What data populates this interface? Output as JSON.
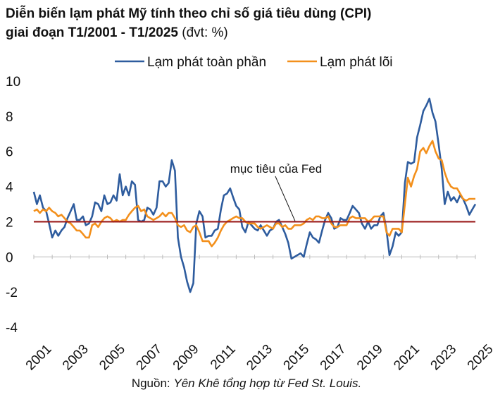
{
  "title_line1": "Diễn biến lạm phát Mỹ tính theo chỉ số giá tiêu dùng (CPI)",
  "title_line2": "giai đoạn T1/2001 - T1/2025",
  "title_unit": "(đvt: %)",
  "source_prefix": "Nguồn:",
  "source_text": "Yên Khê tổng hợp từ Fed St. Louis.",
  "colors": {
    "headline": "#2e5c9e",
    "core": "#f3901c",
    "target": "#9b1b1b",
    "axis": "#bbbbbb"
  },
  "chart_data": {
    "type": "line",
    "title": "Diễn biến lạm phát Mỹ tính theo chỉ số giá tiêu dùng (CPI) giai đoạn T1/2001 - T1/2025 (đvt: %)",
    "xlabel": "",
    "ylabel": "",
    "xlim": [
      2001,
      2025
    ],
    "ylim": [
      -4,
      10
    ],
    "yticks": [
      "-4",
      "-2",
      "0",
      "2",
      "4",
      "6",
      "8",
      "10"
    ],
    "xticks": [
      "2001",
      "2003",
      "2005",
      "2007",
      "2009",
      "2011",
      "2013",
      "2015",
      "2017",
      "2019",
      "2021",
      "2023",
      "2025"
    ],
    "legend_position": "top-center",
    "annotation": {
      "text": "mục tiêu của Fed",
      "x": 2015.2,
      "y": 2
    },
    "target_line": 2,
    "series": [
      {
        "name": "Lạm phát toàn phần",
        "points": [
          [
            2001.0,
            3.7
          ],
          [
            2001.17,
            3.0
          ],
          [
            2001.33,
            3.5
          ],
          [
            2001.5,
            2.8
          ],
          [
            2001.67,
            2.6
          ],
          [
            2001.83,
            1.9
          ],
          [
            2002.0,
            1.1
          ],
          [
            2002.17,
            1.5
          ],
          [
            2002.33,
            1.2
          ],
          [
            2002.5,
            1.5
          ],
          [
            2002.67,
            1.7
          ],
          [
            2002.83,
            2.2
          ],
          [
            2003.0,
            2.6
          ],
          [
            2003.17,
            3.0
          ],
          [
            2003.33,
            2.1
          ],
          [
            2003.5,
            2.1
          ],
          [
            2003.67,
            2.3
          ],
          [
            2003.83,
            1.8
          ],
          [
            2004.0,
            1.9
          ],
          [
            2004.17,
            2.3
          ],
          [
            2004.33,
            3.1
          ],
          [
            2004.5,
            3.0
          ],
          [
            2004.67,
            2.6
          ],
          [
            2004.83,
            3.5
          ],
          [
            2005.0,
            3.0
          ],
          [
            2005.17,
            3.1
          ],
          [
            2005.33,
            3.5
          ],
          [
            2005.5,
            3.2
          ],
          [
            2005.67,
            4.7
          ],
          [
            2005.83,
            3.5
          ],
          [
            2006.0,
            4.0
          ],
          [
            2006.17,
            3.5
          ],
          [
            2006.33,
            4.3
          ],
          [
            2006.5,
            4.1
          ],
          [
            2006.67,
            2.1
          ],
          [
            2006.83,
            2.0
          ],
          [
            2007.0,
            2.1
          ],
          [
            2007.17,
            2.8
          ],
          [
            2007.33,
            2.7
          ],
          [
            2007.5,
            2.4
          ],
          [
            2007.67,
            2.8
          ],
          [
            2007.83,
            4.3
          ],
          [
            2008.0,
            4.3
          ],
          [
            2008.17,
            4.0
          ],
          [
            2008.33,
            4.2
          ],
          [
            2008.5,
            5.5
          ],
          [
            2008.67,
            4.9
          ],
          [
            2008.83,
            1.1
          ],
          [
            2009.0,
            0.0
          ],
          [
            2009.17,
            -0.6
          ],
          [
            2009.33,
            -1.4
          ],
          [
            2009.5,
            -2.0
          ],
          [
            2009.67,
            -1.5
          ],
          [
            2009.83,
            1.9
          ],
          [
            2010.0,
            2.6
          ],
          [
            2010.17,
            2.3
          ],
          [
            2010.33,
            1.1
          ],
          [
            2010.5,
            1.2
          ],
          [
            2010.67,
            1.2
          ],
          [
            2010.83,
            1.5
          ],
          [
            2011.0,
            1.6
          ],
          [
            2011.17,
            2.7
          ],
          [
            2011.33,
            3.5
          ],
          [
            2011.5,
            3.6
          ],
          [
            2011.67,
            3.9
          ],
          [
            2011.83,
            3.4
          ],
          [
            2012.0,
            2.9
          ],
          [
            2012.17,
            2.7
          ],
          [
            2012.33,
            1.7
          ],
          [
            2012.5,
            1.4
          ],
          [
            2012.67,
            2.0
          ],
          [
            2012.83,
            1.8
          ],
          [
            2013.0,
            1.6
          ],
          [
            2013.17,
            1.5
          ],
          [
            2013.33,
            1.8
          ],
          [
            2013.5,
            1.5
          ],
          [
            2013.67,
            1.2
          ],
          [
            2013.83,
            1.5
          ],
          [
            2014.0,
            1.6
          ],
          [
            2014.17,
            2.0
          ],
          [
            2014.33,
            2.1
          ],
          [
            2014.5,
            1.7
          ],
          [
            2014.67,
            1.3
          ],
          [
            2014.83,
            0.8
          ],
          [
            2015.0,
            -0.1
          ],
          [
            2015.17,
            0.0
          ],
          [
            2015.33,
            0.1
          ],
          [
            2015.5,
            0.2
          ],
          [
            2015.67,
            0.0
          ],
          [
            2015.83,
            0.7
          ],
          [
            2016.0,
            1.4
          ],
          [
            2016.17,
            1.1
          ],
          [
            2016.33,
            1.0
          ],
          [
            2016.5,
            0.8
          ],
          [
            2016.67,
            1.5
          ],
          [
            2016.83,
            2.1
          ],
          [
            2017.0,
            2.5
          ],
          [
            2017.17,
            2.2
          ],
          [
            2017.33,
            1.6
          ],
          [
            2017.5,
            1.7
          ],
          [
            2017.67,
            2.2
          ],
          [
            2017.83,
            2.1
          ],
          [
            2018.0,
            2.1
          ],
          [
            2018.17,
            2.5
          ],
          [
            2018.33,
            2.9
          ],
          [
            2018.5,
            2.7
          ],
          [
            2018.67,
            2.5
          ],
          [
            2018.83,
            1.9
          ],
          [
            2019.0,
            1.6
          ],
          [
            2019.17,
            2.0
          ],
          [
            2019.33,
            1.6
          ],
          [
            2019.5,
            1.8
          ],
          [
            2019.67,
            1.8
          ],
          [
            2019.83,
            2.3
          ],
          [
            2020.0,
            2.5
          ],
          [
            2020.17,
            1.5
          ],
          [
            2020.33,
            0.1
          ],
          [
            2020.5,
            0.6
          ],
          [
            2020.67,
            1.4
          ],
          [
            2020.83,
            1.2
          ],
          [
            2021.0,
            1.4
          ],
          [
            2021.17,
            4.2
          ],
          [
            2021.33,
            5.4
          ],
          [
            2021.5,
            5.3
          ],
          [
            2021.67,
            5.4
          ],
          [
            2021.83,
            6.8
          ],
          [
            2022.0,
            7.5
          ],
          [
            2022.17,
            8.3
          ],
          [
            2022.33,
            8.6
          ],
          [
            2022.5,
            9.0
          ],
          [
            2022.67,
            8.2
          ],
          [
            2022.83,
            7.7
          ],
          [
            2023.0,
            6.4
          ],
          [
            2023.17,
            5.0
          ],
          [
            2023.33,
            3.0
          ],
          [
            2023.5,
            3.7
          ],
          [
            2023.67,
            3.2
          ],
          [
            2023.83,
            3.4
          ],
          [
            2024.0,
            3.1
          ],
          [
            2024.17,
            3.5
          ],
          [
            2024.33,
            3.3
          ],
          [
            2024.5,
            2.9
          ],
          [
            2024.67,
            2.4
          ],
          [
            2024.83,
            2.7
          ],
          [
            2025.0,
            3.0
          ]
        ]
      },
      {
        "name": "Lạm phát lõi",
        "points": [
          [
            2001.0,
            2.6
          ],
          [
            2001.17,
            2.7
          ],
          [
            2001.33,
            2.5
          ],
          [
            2001.5,
            2.7
          ],
          [
            2001.67,
            2.6
          ],
          [
            2001.83,
            2.8
          ],
          [
            2002.0,
            2.6
          ],
          [
            2002.17,
            2.5
          ],
          [
            2002.33,
            2.3
          ],
          [
            2002.5,
            2.4
          ],
          [
            2002.67,
            2.2
          ],
          [
            2002.83,
            2.0
          ],
          [
            2003.0,
            1.9
          ],
          [
            2003.17,
            1.7
          ],
          [
            2003.33,
            1.5
          ],
          [
            2003.5,
            1.5
          ],
          [
            2003.67,
            1.3
          ],
          [
            2003.83,
            1.1
          ],
          [
            2004.0,
            1.1
          ],
          [
            2004.17,
            1.8
          ],
          [
            2004.33,
            1.9
          ],
          [
            2004.5,
            1.7
          ],
          [
            2004.67,
            2.0
          ],
          [
            2004.83,
            2.2
          ],
          [
            2005.0,
            2.3
          ],
          [
            2005.17,
            2.2
          ],
          [
            2005.33,
            2.0
          ],
          [
            2005.5,
            2.1
          ],
          [
            2005.67,
            2.0
          ],
          [
            2005.83,
            2.1
          ],
          [
            2006.0,
            2.1
          ],
          [
            2006.17,
            2.4
          ],
          [
            2006.33,
            2.6
          ],
          [
            2006.5,
            2.8
          ],
          [
            2006.67,
            2.9
          ],
          [
            2006.83,
            2.6
          ],
          [
            2007.0,
            2.7
          ],
          [
            2007.17,
            2.3
          ],
          [
            2007.33,
            2.2
          ],
          [
            2007.5,
            2.1
          ],
          [
            2007.67,
            2.2
          ],
          [
            2007.83,
            2.3
          ],
          [
            2008.0,
            2.5
          ],
          [
            2008.17,
            2.3
          ],
          [
            2008.33,
            2.5
          ],
          [
            2008.5,
            2.5
          ],
          [
            2008.67,
            2.2
          ],
          [
            2008.83,
            1.8
          ],
          [
            2009.0,
            1.7
          ],
          [
            2009.17,
            1.8
          ],
          [
            2009.33,
            1.5
          ],
          [
            2009.5,
            1.4
          ],
          [
            2009.67,
            1.7
          ],
          [
            2009.83,
            1.8
          ],
          [
            2010.0,
            1.4
          ],
          [
            2010.17,
            0.9
          ],
          [
            2010.33,
            0.9
          ],
          [
            2010.5,
            0.9
          ],
          [
            2010.67,
            0.6
          ],
          [
            2010.83,
            0.8
          ],
          [
            2011.0,
            1.1
          ],
          [
            2011.17,
            1.5
          ],
          [
            2011.33,
            1.8
          ],
          [
            2011.5,
            2.0
          ],
          [
            2011.67,
            2.1
          ],
          [
            2011.83,
            2.2
          ],
          [
            2012.0,
            2.3
          ],
          [
            2012.17,
            2.2
          ],
          [
            2012.33,
            2.2
          ],
          [
            2012.5,
            2.0
          ],
          [
            2012.67,
            1.9
          ],
          [
            2012.83,
            1.9
          ],
          [
            2013.0,
            1.9
          ],
          [
            2013.17,
            1.7
          ],
          [
            2013.33,
            1.6
          ],
          [
            2013.5,
            1.7
          ],
          [
            2013.67,
            1.8
          ],
          [
            2013.83,
            1.7
          ],
          [
            2014.0,
            1.6
          ],
          [
            2014.17,
            1.9
          ],
          [
            2014.33,
            1.9
          ],
          [
            2014.5,
            1.7
          ],
          [
            2014.67,
            1.8
          ],
          [
            2014.83,
            1.6
          ],
          [
            2015.0,
            1.6
          ],
          [
            2015.17,
            1.8
          ],
          [
            2015.33,
            1.8
          ],
          [
            2015.5,
            1.8
          ],
          [
            2015.67,
            1.9
          ],
          [
            2015.83,
            2.1
          ],
          [
            2016.0,
            2.2
          ],
          [
            2016.17,
            2.1
          ],
          [
            2016.33,
            2.3
          ],
          [
            2016.5,
            2.3
          ],
          [
            2016.67,
            2.2
          ],
          [
            2016.83,
            2.2
          ],
          [
            2017.0,
            2.3
          ],
          [
            2017.17,
            1.9
          ],
          [
            2017.33,
            1.7
          ],
          [
            2017.5,
            1.7
          ],
          [
            2017.67,
            1.8
          ],
          [
            2017.83,
            1.8
          ],
          [
            2018.0,
            1.8
          ],
          [
            2018.17,
            2.2
          ],
          [
            2018.33,
            2.3
          ],
          [
            2018.5,
            2.2
          ],
          [
            2018.67,
            2.2
          ],
          [
            2018.83,
            2.2
          ],
          [
            2019.0,
            2.2
          ],
          [
            2019.17,
            2.0
          ],
          [
            2019.33,
            2.1
          ],
          [
            2019.5,
            2.3
          ],
          [
            2019.67,
            2.3
          ],
          [
            2019.83,
            2.3
          ],
          [
            2020.0,
            2.3
          ],
          [
            2020.17,
            1.4
          ],
          [
            2020.33,
            1.2
          ],
          [
            2020.5,
            1.6
          ],
          [
            2020.67,
            1.6
          ],
          [
            2020.83,
            1.6
          ],
          [
            2021.0,
            1.4
          ],
          [
            2021.17,
            3.0
          ],
          [
            2021.33,
            4.5
          ],
          [
            2021.5,
            4.0
          ],
          [
            2021.67,
            4.6
          ],
          [
            2021.83,
            5.0
          ],
          [
            2022.0,
            6.0
          ],
          [
            2022.17,
            6.2
          ],
          [
            2022.33,
            5.9
          ],
          [
            2022.5,
            6.3
          ],
          [
            2022.67,
            6.6
          ],
          [
            2022.83,
            6.0
          ],
          [
            2023.0,
            5.6
          ],
          [
            2023.17,
            5.5
          ],
          [
            2023.33,
            4.8
          ],
          [
            2023.5,
            4.3
          ],
          [
            2023.67,
            4.0
          ],
          [
            2023.83,
            3.9
          ],
          [
            2024.0,
            3.9
          ],
          [
            2024.17,
            3.6
          ],
          [
            2024.33,
            3.3
          ],
          [
            2024.5,
            3.2
          ],
          [
            2024.67,
            3.3
          ],
          [
            2024.83,
            3.3
          ],
          [
            2025.0,
            3.3
          ]
        ]
      }
    ]
  }
}
